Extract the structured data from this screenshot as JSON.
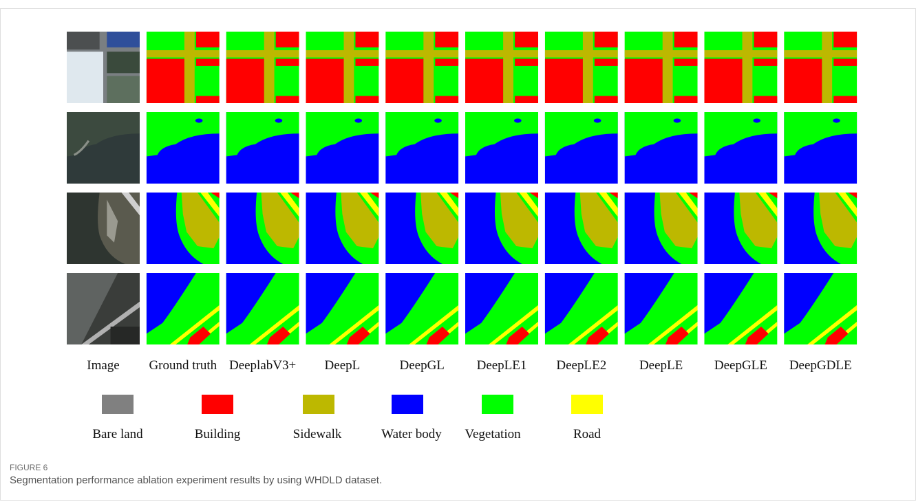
{
  "figure": {
    "columns": [
      "Image",
      "Ground truth",
      "DeeplabV3+",
      "DeepL",
      "DeepGL",
      "DeepLE1",
      "DeepLE2",
      "DeepLE",
      "DeepGLE",
      "DeepGDLE"
    ],
    "legend": [
      "Bare land",
      "Building",
      "Sidewalk",
      "Water body",
      "Vegetation",
      "Road"
    ],
    "label": "FIGURE 6",
    "caption": "Segmentation performance ablation experiment results by using WHDLD dataset."
  }
}
